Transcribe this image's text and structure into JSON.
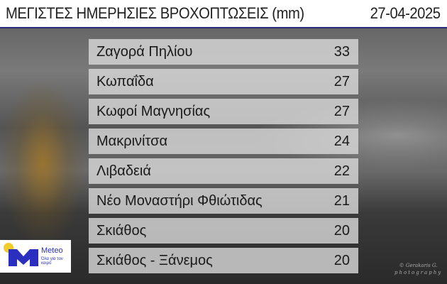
{
  "header": {
    "title": "ΜΕΓΙΣΤΕΣ ΗΜΕΡΗΣΙΕΣ ΒΡΟΧΟΠΤΩΣΕΙΣ (mm)",
    "date": "27-04-2025"
  },
  "rows": [
    {
      "name": "Ζαγορά Πηλίου",
      "value": "33"
    },
    {
      "name": "Κωπαΐδα",
      "value": "27"
    },
    {
      "name": "Κωφοί Μαγνησίας",
      "value": "27"
    },
    {
      "name": "Μακρινίτσα",
      "value": "24"
    },
    {
      "name": "Λιβαδειά",
      "value": "22"
    },
    {
      "name": "Νέο Μοναστήρι Φθιώτιδας",
      "value": "21"
    },
    {
      "name": "Σκιάθος",
      "value": "20"
    },
    {
      "name": "Σκιάθος - Ξάνεμος",
      "value": "20"
    }
  ],
  "logo": {
    "brand": "Meteo",
    "tagline": "Όλα για τον καιρό",
    "colors": {
      "blue": "#2b2fbf",
      "yellow": "#f2cc2a"
    }
  },
  "watermark": {
    "line1": "© Gerakaris G.",
    "line2": "photography"
  }
}
